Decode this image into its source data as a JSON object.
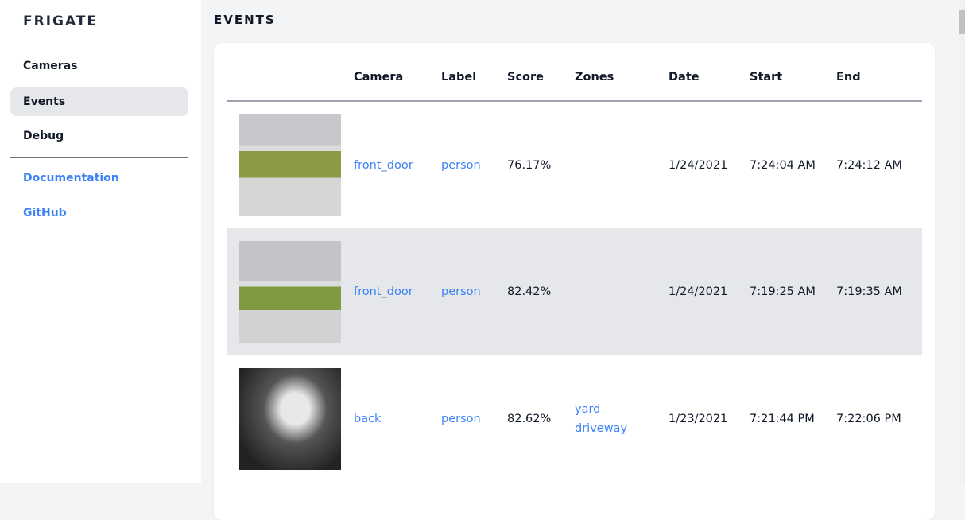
{
  "sidebar": {
    "brand": "FRIGATE",
    "items": [
      {
        "label": "Cameras"
      },
      {
        "label": "Events",
        "active": true
      },
      {
        "label": "Debug"
      }
    ],
    "links": [
      {
        "label": "Documentation"
      },
      {
        "label": "GitHub"
      }
    ]
  },
  "page": {
    "title": "EVENTS"
  },
  "table": {
    "headers": [
      "",
      "Camera",
      "Label",
      "Score",
      "Zones",
      "Date",
      "Start",
      "End"
    ],
    "rows": [
      {
        "camera": "front_door",
        "label": "person",
        "score": "76.17%",
        "zones": [
          "",
          ""
        ],
        "date": "1/24/2021",
        "start": "7:24:04 AM",
        "end": "7:24:12 AM"
      },
      {
        "camera": "front_door",
        "label": "person",
        "score": "82.42%",
        "zones": [
          "",
          ""
        ],
        "date": "1/24/2021",
        "start": "7:19:25 AM",
        "end": "7:19:35 AM"
      },
      {
        "camera": "back",
        "label": "person",
        "score": "82.62%",
        "zones": [
          "yard",
          "driveway"
        ],
        "date": "1/23/2021",
        "start": "7:21:44 PM",
        "end": "7:22:06 PM"
      }
    ]
  },
  "colors": {
    "accent": "#3b82f6",
    "active_bg": "#e5e7eb"
  }
}
